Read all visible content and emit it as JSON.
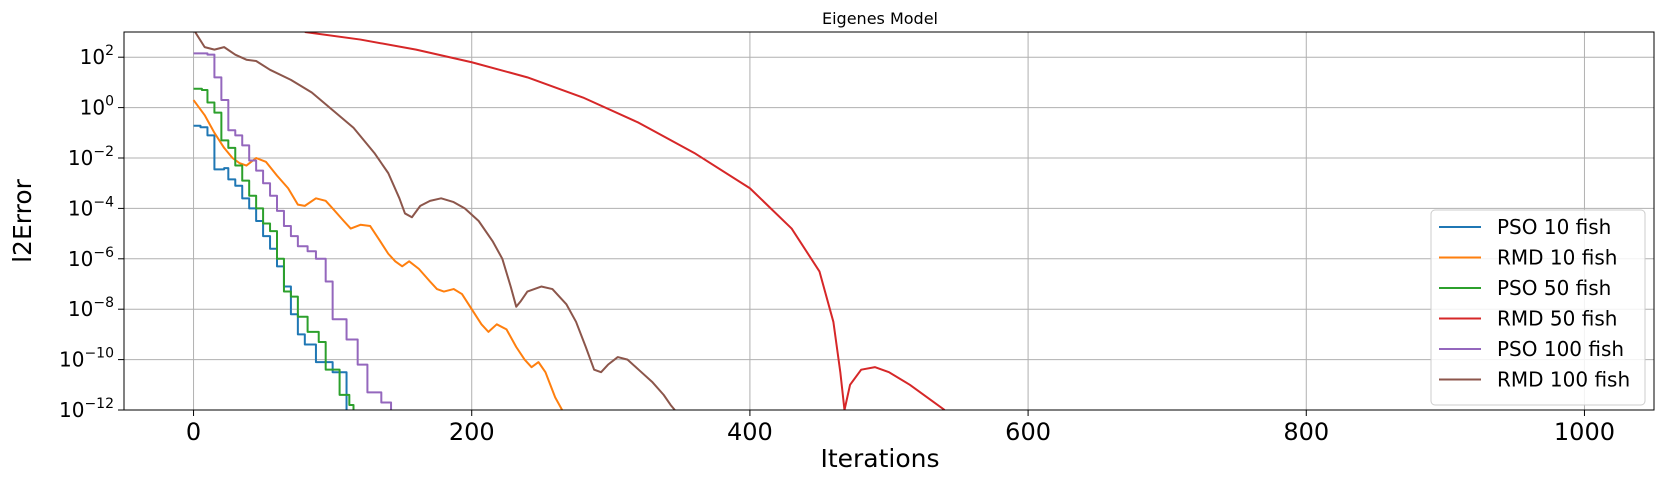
{
  "chart_data": {
    "type": "line",
    "title": "Eigenes Model",
    "xlabel": "Iterations",
    "ylabel": "l2Error",
    "xlim": [
      -50,
      1050
    ],
    "ylim_log10": [
      -12,
      3
    ],
    "yscale": "log",
    "grid": true,
    "legend_position": "lower-right",
    "x_ticks": [
      {
        "value": 0,
        "label": "0"
      },
      {
        "value": 200,
        "label": "200"
      },
      {
        "value": 400,
        "label": "400"
      },
      {
        "value": 600,
        "label": "600"
      },
      {
        "value": 800,
        "label": "800"
      },
      {
        "value": 1000,
        "label": "1000"
      }
    ],
    "y_ticks": [
      {
        "exp": 2,
        "base": "10",
        "sup": "2"
      },
      {
        "exp": 0,
        "base": "10",
        "sup": "0"
      },
      {
        "exp": -2,
        "base": "10",
        "sup": "−2"
      },
      {
        "exp": -4,
        "base": "10",
        "sup": "−4"
      },
      {
        "exp": -6,
        "base": "10",
        "sup": "−6"
      },
      {
        "exp": -8,
        "base": "10",
        "sup": "−8"
      },
      {
        "exp": -10,
        "base": "10",
        "sup": "−10"
      },
      {
        "exp": -12,
        "base": "10",
        "sup": "−12"
      }
    ],
    "series": [
      {
        "name": "PSO 10 fish",
        "color": "#1f77b4",
        "step": true,
        "points": [
          [
            0,
            -0.72
          ],
          [
            5,
            -0.78
          ],
          [
            10,
            -1.1
          ],
          [
            15,
            -2.45
          ],
          [
            22,
            -2.4
          ],
          [
            25,
            -2.85
          ],
          [
            30,
            -3.1
          ],
          [
            35,
            -3.6
          ],
          [
            40,
            -4.0
          ],
          [
            45,
            -4.5
          ],
          [
            50,
            -5.1
          ],
          [
            55,
            -5.6
          ],
          [
            60,
            -6.3
          ],
          [
            65,
            -7.1
          ],
          [
            70,
            -8.2
          ],
          [
            75,
            -9.0
          ],
          [
            80,
            -9.4
          ],
          [
            88,
            -10.1
          ],
          [
            100,
            -10.5
          ],
          [
            110,
            -12.0
          ]
        ]
      },
      {
        "name": "RMD 10 fish",
        "color": "#ff7f0e",
        "step": false,
        "points": [
          [
            0,
            0.3
          ],
          [
            8,
            -0.3
          ],
          [
            15,
            -1.0
          ],
          [
            22,
            -1.6
          ],
          [
            28,
            -2.0
          ],
          [
            33,
            -2.2
          ],
          [
            38,
            -2.3
          ],
          [
            45,
            -2.0
          ],
          [
            52,
            -2.15
          ],
          [
            60,
            -2.7
          ],
          [
            68,
            -3.2
          ],
          [
            75,
            -3.85
          ],
          [
            80,
            -3.9
          ],
          [
            88,
            -3.6
          ],
          [
            95,
            -3.7
          ],
          [
            100,
            -4.0
          ],
          [
            108,
            -4.5
          ],
          [
            113,
            -4.8
          ],
          [
            120,
            -4.65
          ],
          [
            127,
            -4.7
          ],
          [
            133,
            -5.2
          ],
          [
            140,
            -5.8
          ],
          [
            145,
            -6.1
          ],
          [
            150,
            -6.3
          ],
          [
            155,
            -6.1
          ],
          [
            162,
            -6.4
          ],
          [
            170,
            -6.9
          ],
          [
            175,
            -7.2
          ],
          [
            180,
            -7.3
          ],
          [
            187,
            -7.2
          ],
          [
            193,
            -7.4
          ],
          [
            200,
            -8.0
          ],
          [
            207,
            -8.6
          ],
          [
            212,
            -8.9
          ],
          [
            218,
            -8.6
          ],
          [
            225,
            -8.8
          ],
          [
            232,
            -9.5
          ],
          [
            238,
            -10.0
          ],
          [
            243,
            -10.3
          ],
          [
            248,
            -10.1
          ],
          [
            253,
            -10.5
          ],
          [
            260,
            -11.5
          ],
          [
            265,
            -12.0
          ]
        ]
      },
      {
        "name": "PSO 50 fish",
        "color": "#2ca02c",
        "step": true,
        "points": [
          [
            0,
            0.75
          ],
          [
            6,
            0.7
          ],
          [
            10,
            0.2
          ],
          [
            15,
            -0.2
          ],
          [
            20,
            -1.3
          ],
          [
            25,
            -1.6
          ],
          [
            30,
            -2.3
          ],
          [
            35,
            -2.9
          ],
          [
            40,
            -3.5
          ],
          [
            45,
            -4.0
          ],
          [
            50,
            -4.6
          ],
          [
            55,
            -4.9
          ],
          [
            60,
            -6.0
          ],
          [
            65,
            -7.3
          ],
          [
            70,
            -7.5
          ],
          [
            75,
            -8.3
          ],
          [
            82,
            -8.9
          ],
          [
            90,
            -9.3
          ],
          [
            95,
            -10.4
          ],
          [
            105,
            -11.4
          ],
          [
            112,
            -11.8
          ],
          [
            115,
            -12.0
          ]
        ]
      },
      {
        "name": "RMD 50 fish",
        "color": "#d62728",
        "step": false,
        "points": [
          [
            80,
            3.0
          ],
          [
            120,
            2.7
          ],
          [
            160,
            2.3
          ],
          [
            200,
            1.8
          ],
          [
            240,
            1.2
          ],
          [
            280,
            0.4
          ],
          [
            320,
            -0.6
          ],
          [
            360,
            -1.8
          ],
          [
            400,
            -3.2
          ],
          [
            430,
            -4.8
          ],
          [
            450,
            -6.5
          ],
          [
            460,
            -8.5
          ],
          [
            465,
            -10.5
          ],
          [
            468,
            -12.0
          ],
          [
            472,
            -11.0
          ],
          [
            480,
            -10.4
          ],
          [
            490,
            -10.3
          ],
          [
            500,
            -10.5
          ],
          [
            515,
            -11.0
          ],
          [
            530,
            -11.6
          ],
          [
            540,
            -12.0
          ]
        ]
      },
      {
        "name": "PSO 100 fish",
        "color": "#9467bd",
        "step": true,
        "points": [
          [
            0,
            2.15
          ],
          [
            10,
            2.1
          ],
          [
            15,
            1.2
          ],
          [
            20,
            0.3
          ],
          [
            25,
            -0.9
          ],
          [
            30,
            -1.1
          ],
          [
            35,
            -1.5
          ],
          [
            40,
            -2.1
          ],
          [
            45,
            -2.5
          ],
          [
            50,
            -3.0
          ],
          [
            55,
            -3.5
          ],
          [
            60,
            -4.1
          ],
          [
            65,
            -4.7
          ],
          [
            70,
            -5.1
          ],
          [
            75,
            -5.5
          ],
          [
            82,
            -5.7
          ],
          [
            88,
            -6.0
          ],
          [
            95,
            -6.9
          ],
          [
            100,
            -8.4
          ],
          [
            110,
            -9.2
          ],
          [
            118,
            -10.2
          ],
          [
            125,
            -11.3
          ],
          [
            135,
            -11.7
          ],
          [
            142,
            -12.0
          ]
        ]
      },
      {
        "name": "RMD 100 fish",
        "color": "#8c564b",
        "step": false,
        "points": [
          [
            0,
            3.1
          ],
          [
            8,
            2.4
          ],
          [
            15,
            2.3
          ],
          [
            22,
            2.4
          ],
          [
            30,
            2.1
          ],
          [
            38,
            1.9
          ],
          [
            45,
            1.85
          ],
          [
            55,
            1.5
          ],
          [
            70,
            1.1
          ],
          [
            85,
            0.6
          ],
          [
            100,
            -0.1
          ],
          [
            115,
            -0.8
          ],
          [
            130,
            -1.8
          ],
          [
            140,
            -2.6
          ],
          [
            148,
            -3.6
          ],
          [
            152,
            -4.2
          ],
          [
            157,
            -4.35
          ],
          [
            163,
            -3.9
          ],
          [
            170,
            -3.7
          ],
          [
            178,
            -3.6
          ],
          [
            187,
            -3.75
          ],
          [
            195,
            -4.0
          ],
          [
            205,
            -4.5
          ],
          [
            215,
            -5.3
          ],
          [
            222,
            -6.0
          ],
          [
            228,
            -7.1
          ],
          [
            232,
            -7.9
          ],
          [
            235,
            -7.7
          ],
          [
            240,
            -7.3
          ],
          [
            250,
            -7.1
          ],
          [
            258,
            -7.2
          ],
          [
            268,
            -7.8
          ],
          [
            275,
            -8.5
          ],
          [
            282,
            -9.5
          ],
          [
            288,
            -10.4
          ],
          [
            293,
            -10.5
          ],
          [
            298,
            -10.2
          ],
          [
            305,
            -9.9
          ],
          [
            312,
            -10.0
          ],
          [
            320,
            -10.4
          ],
          [
            330,
            -10.9
          ],
          [
            338,
            -11.4
          ],
          [
            343,
            -11.8
          ],
          [
            346,
            -12.0
          ]
        ]
      }
    ]
  }
}
